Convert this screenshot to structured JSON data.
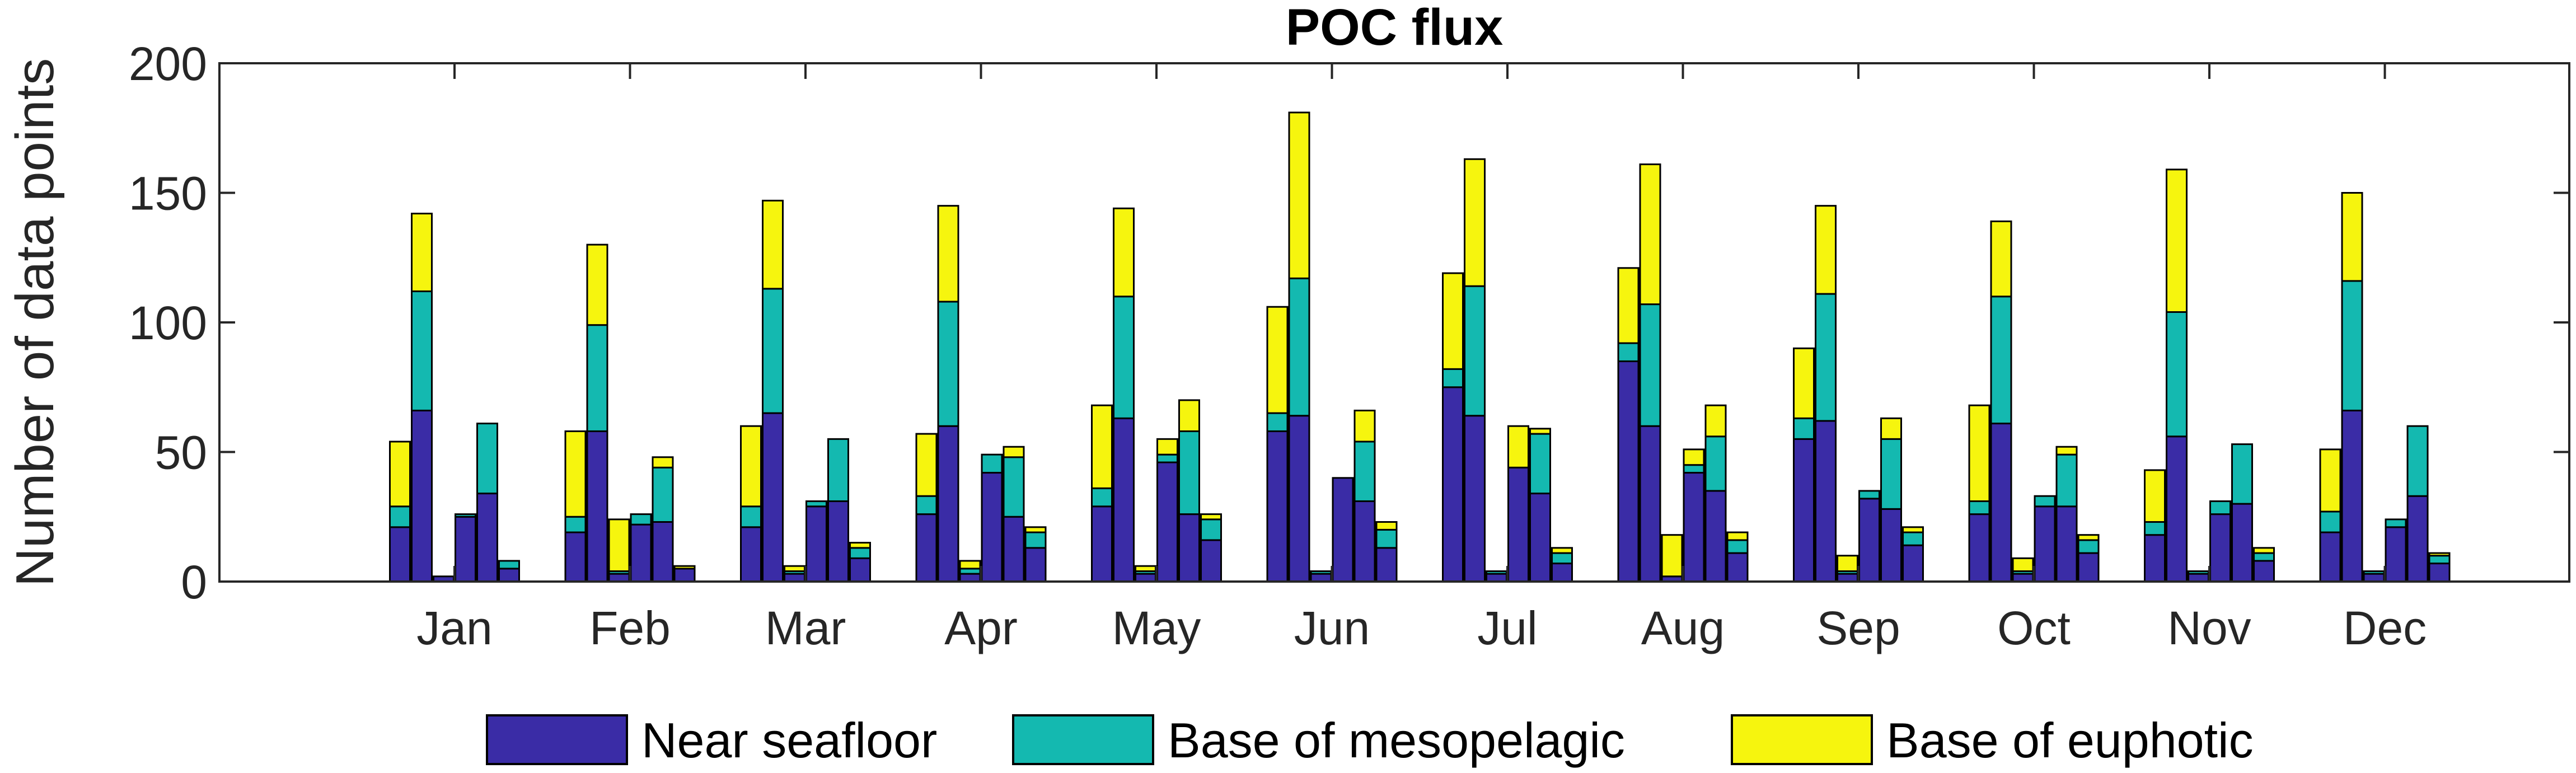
{
  "chart_data": {
    "type": "bar",
    "stacked": true,
    "title": "POC flux",
    "xlabel": "",
    "ylabel": "Number of data points",
    "ylim": [
      0,
      200
    ],
    "yticks": [
      0,
      50,
      100,
      150,
      200
    ],
    "categories": [
      "Jan",
      "Feb",
      "Mar",
      "Apr",
      "May",
      "Jun",
      "Jul",
      "Aug",
      "Sep",
      "Oct",
      "Nov",
      "Dec"
    ],
    "bars_per_category": 6,
    "legend_position": "bottom",
    "series": [
      {
        "name": "Near seafloor",
        "color": "#3a2ca6",
        "values": [
          [
            21,
            66,
            2,
            25,
            34,
            5
          ],
          [
            19,
            58,
            3,
            22,
            23,
            5
          ],
          [
            21,
            65,
            3,
            29,
            31,
            9
          ],
          [
            26,
            60,
            3,
            42,
            25,
            13
          ],
          [
            29,
            63,
            3,
            46,
            26,
            16
          ],
          [
            58,
            64,
            3,
            40,
            31,
            13
          ],
          [
            75,
            64,
            3,
            44,
            34,
            7
          ],
          [
            85,
            60,
            2,
            42,
            35,
            11
          ],
          [
            55,
            62,
            3,
            32,
            28,
            14
          ],
          [
            26,
            61,
            3,
            29,
            29,
            11
          ],
          [
            18,
            56,
            3,
            26,
            30,
            8
          ],
          [
            19,
            66,
            3,
            21,
            33,
            7
          ]
        ]
      },
      {
        "name": "Base of mesopelagic",
        "color": "#14b9b0",
        "values": [
          [
            8,
            46,
            0,
            1,
            27,
            3
          ],
          [
            6,
            41,
            1,
            4,
            21,
            0
          ],
          [
            8,
            48,
            1,
            2,
            24,
            4
          ],
          [
            7,
            48,
            2,
            7,
            23,
            6
          ],
          [
            7,
            47,
            1,
            3,
            32,
            8
          ],
          [
            7,
            53,
            1,
            0,
            23,
            7
          ],
          [
            7,
            50,
            1,
            0,
            23,
            4
          ],
          [
            7,
            47,
            0,
            3,
            21,
            5
          ],
          [
            8,
            49,
            1,
            3,
            27,
            5
          ],
          [
            5,
            49,
            1,
            4,
            20,
            5
          ],
          [
            5,
            48,
            1,
            5,
            23,
            3
          ],
          [
            8,
            50,
            1,
            3,
            27,
            3
          ]
        ]
      },
      {
        "name": "Base of euphotic",
        "color": "#f6f50e",
        "values": [
          [
            25,
            30,
            0,
            0,
            0,
            0
          ],
          [
            33,
            31,
            20,
            0,
            4,
            1
          ],
          [
            31,
            34,
            2,
            0,
            0,
            2
          ],
          [
            24,
            37,
            3,
            0,
            4,
            2
          ],
          [
            32,
            34,
            2,
            6,
            12,
            2
          ],
          [
            41,
            64,
            0,
            0,
            12,
            3
          ],
          [
            37,
            49,
            0,
            16,
            2,
            2
          ],
          [
            29,
            54,
            16,
            6,
            12,
            3
          ],
          [
            27,
            34,
            6,
            0,
            8,
            2
          ],
          [
            37,
            29,
            5,
            0,
            3,
            2
          ],
          [
            20,
            55,
            0,
            0,
            0,
            2
          ],
          [
            24,
            34,
            0,
            0,
            0,
            1
          ]
        ]
      }
    ]
  }
}
